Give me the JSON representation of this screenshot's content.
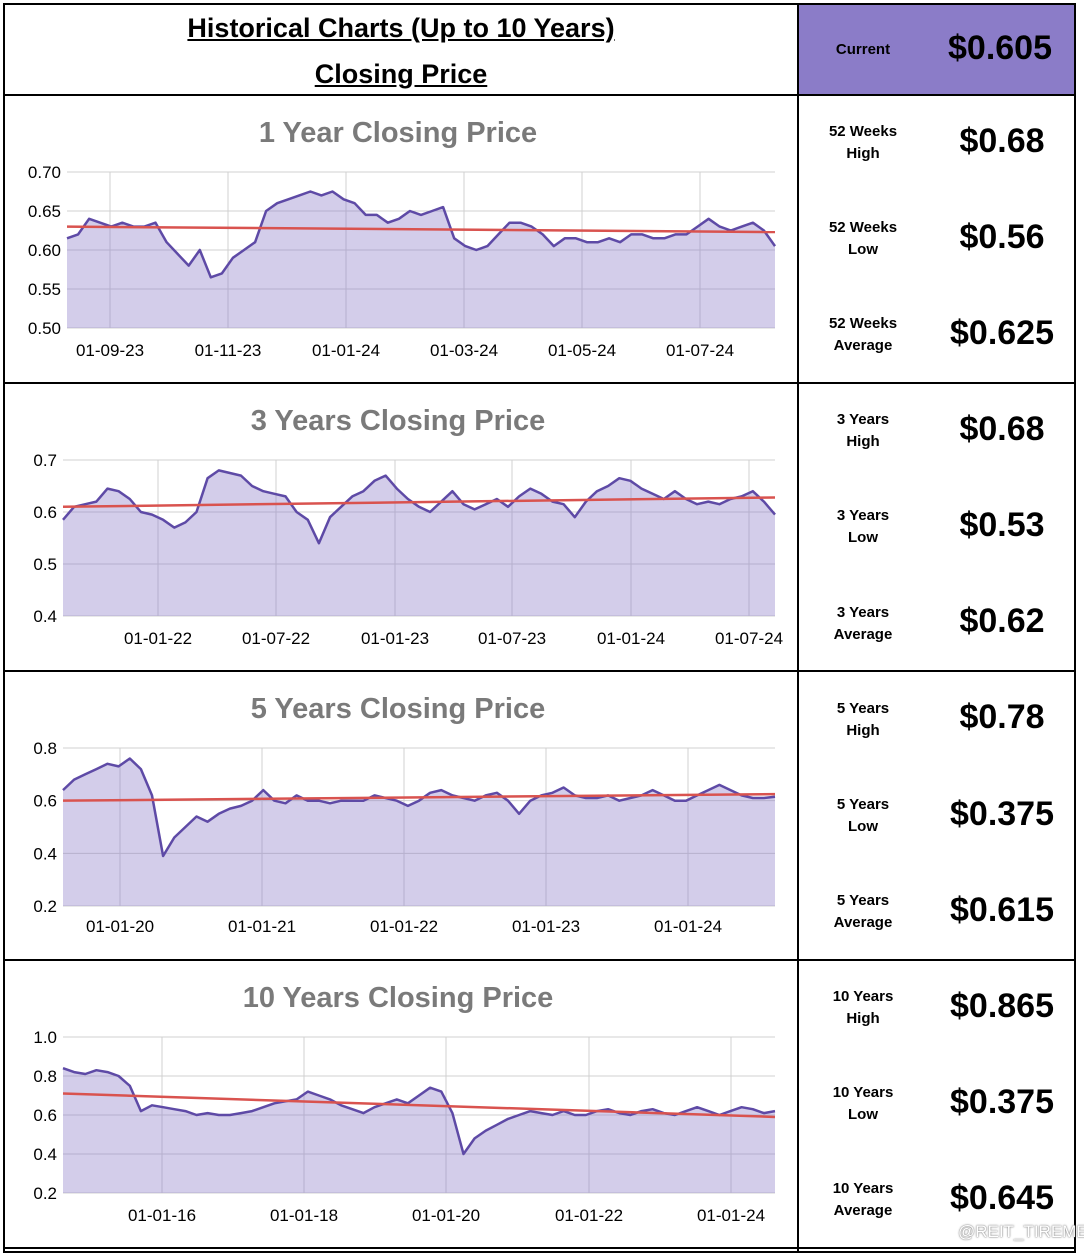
{
  "header": {
    "title_line1": "Historical Charts (Up to 10 Years)",
    "title_line2": "Closing Price",
    "current_label": "Current",
    "current_value": "$0.605",
    "accent_color": "#8b7cc8"
  },
  "sections": [
    {
      "stats": [
        {
          "label1": "52 Weeks",
          "label2": "High",
          "value": "$0.68"
        },
        {
          "label1": "52 Weeks",
          "label2": "Low",
          "value": "$0.56"
        },
        {
          "label1": "52 Weeks",
          "label2": "Average",
          "value": "$0.625"
        }
      ]
    },
    {
      "stats": [
        {
          "label1": "3 Years",
          "label2": "High",
          "value": "$0.68"
        },
        {
          "label1": "3 Years",
          "label2": "Low",
          "value": "$0.53"
        },
        {
          "label1": "3 Years",
          "label2": "Average",
          "value": "$0.62"
        }
      ]
    },
    {
      "stats": [
        {
          "label1": "5 Years",
          "label2": "High",
          "value": "$0.78"
        },
        {
          "label1": "5 Years",
          "label2": "Low",
          "value": "$0.375"
        },
        {
          "label1": "5 Years",
          "label2": "Average",
          "value": "$0.615"
        }
      ]
    },
    {
      "stats": [
        {
          "label1": "10 Years",
          "label2": "High",
          "value": "$0.865"
        },
        {
          "label1": "10 Years",
          "label2": "Low",
          "value": "$0.375"
        },
        {
          "label1": "10 Years",
          "label2": "Average",
          "value": "$0.645"
        }
      ]
    }
  ],
  "watermark": "@REIT_TIREMENT",
  "chart_data": [
    {
      "type": "area",
      "title": "1 Year Closing Price",
      "xlabel": "",
      "ylabel": "",
      "x_tick_labels": [
        "01-09-23",
        "01-11-23",
        "01-01-24",
        "01-03-24",
        "01-05-24",
        "01-07-24"
      ],
      "y_tick_labels": [
        "0.70",
        "0.65",
        "0.60",
        "0.55",
        "0.50"
      ],
      "ylim": [
        0.5,
        0.7
      ],
      "grid": true,
      "series": [
        {
          "values": [
            0.615,
            0.62,
            0.64,
            0.635,
            0.63,
            0.635,
            0.63,
            0.63,
            0.635,
            0.61,
            0.595,
            0.58,
            0.6,
            0.565,
            0.57,
            0.59,
            0.6,
            0.61,
            0.65,
            0.66,
            0.665,
            0.67,
            0.675,
            0.67,
            0.675,
            0.665,
            0.66,
            0.645,
            0.645,
            0.635,
            0.64,
            0.65,
            0.645,
            0.65,
            0.655,
            0.615,
            0.605,
            0.6,
            0.605,
            0.62,
            0.635,
            0.635,
            0.63,
            0.62,
            0.605,
            0.615,
            0.615,
            0.61,
            0.61,
            0.615,
            0.61,
            0.62,
            0.62,
            0.615,
            0.615,
            0.62,
            0.62,
            0.63,
            0.64,
            0.63,
            0.625,
            0.63,
            0.635,
            0.625,
            0.605
          ]
        },
        {
          "values": [
            0.63,
            0.623
          ]
        }
      ]
    },
    {
      "type": "area",
      "title": "3 Years Closing Price",
      "xlabel": "",
      "ylabel": "",
      "x_tick_labels": [
        "01-01-22",
        "01-07-22",
        "01-01-23",
        "01-07-23",
        "01-01-24",
        "01-07-24"
      ],
      "y_tick_labels": [
        "0.7",
        "0.6",
        "0.5",
        "0.4"
      ],
      "ylim": [
        0.4,
        0.7
      ],
      "grid": true,
      "series": [
        {
          "values": [
            0.585,
            0.61,
            0.615,
            0.62,
            0.645,
            0.64,
            0.625,
            0.6,
            0.595,
            0.585,
            0.57,
            0.58,
            0.6,
            0.665,
            0.68,
            0.675,
            0.67,
            0.65,
            0.64,
            0.635,
            0.63,
            0.6,
            0.585,
            0.54,
            0.59,
            0.61,
            0.63,
            0.64,
            0.66,
            0.67,
            0.645,
            0.625,
            0.61,
            0.6,
            0.62,
            0.64,
            0.615,
            0.605,
            0.615,
            0.625,
            0.61,
            0.63,
            0.645,
            0.635,
            0.62,
            0.615,
            0.59,
            0.62,
            0.64,
            0.65,
            0.665,
            0.66,
            0.645,
            0.635,
            0.625,
            0.64,
            0.625,
            0.615,
            0.62,
            0.615,
            0.625,
            0.63,
            0.64,
            0.62,
            0.595
          ]
        },
        {
          "values": [
            0.61,
            0.628
          ]
        }
      ]
    },
    {
      "type": "area",
      "title": "5 Years Closing Price",
      "xlabel": "",
      "ylabel": "",
      "x_tick_labels": [
        "01-01-20",
        "01-01-21",
        "01-01-22",
        "01-01-23",
        "01-01-24"
      ],
      "y_tick_labels": [
        "0.8",
        "0.6",
        "0.4",
        "0.2"
      ],
      "ylim": [
        0.2,
        0.8
      ],
      "grid": true,
      "series": [
        {
          "values": [
            0.64,
            0.68,
            0.7,
            0.72,
            0.74,
            0.73,
            0.76,
            0.72,
            0.62,
            0.39,
            0.46,
            0.5,
            0.54,
            0.52,
            0.55,
            0.57,
            0.58,
            0.6,
            0.64,
            0.6,
            0.59,
            0.62,
            0.6,
            0.6,
            0.59,
            0.6,
            0.6,
            0.6,
            0.62,
            0.61,
            0.6,
            0.58,
            0.6,
            0.63,
            0.64,
            0.62,
            0.61,
            0.6,
            0.62,
            0.63,
            0.6,
            0.55,
            0.6,
            0.62,
            0.63,
            0.65,
            0.62,
            0.61,
            0.61,
            0.62,
            0.6,
            0.61,
            0.62,
            0.64,
            0.62,
            0.6,
            0.6,
            0.62,
            0.64,
            0.66,
            0.64,
            0.62,
            0.61,
            0.61,
            0.615
          ]
        },
        {
          "values": [
            0.6,
            0.625
          ]
        }
      ]
    },
    {
      "type": "area",
      "title": "10 Years Closing Price",
      "xlabel": "",
      "ylabel": "",
      "x_tick_labels": [
        "01-01-16",
        "01-01-18",
        "01-01-20",
        "01-01-22",
        "01-01-24"
      ],
      "y_tick_labels": [
        "1.0",
        "0.8",
        "0.6",
        "0.4",
        "0.2"
      ],
      "ylim": [
        0.2,
        1.0
      ],
      "grid": true,
      "series": [
        {
          "values": [
            0.84,
            0.82,
            0.81,
            0.83,
            0.82,
            0.8,
            0.75,
            0.62,
            0.65,
            0.64,
            0.63,
            0.62,
            0.6,
            0.61,
            0.6,
            0.6,
            0.61,
            0.62,
            0.64,
            0.66,
            0.67,
            0.68,
            0.72,
            0.7,
            0.68,
            0.65,
            0.63,
            0.61,
            0.64,
            0.66,
            0.68,
            0.66,
            0.7,
            0.74,
            0.72,
            0.61,
            0.4,
            0.48,
            0.52,
            0.55,
            0.58,
            0.6,
            0.62,
            0.61,
            0.6,
            0.62,
            0.6,
            0.6,
            0.62,
            0.63,
            0.61,
            0.6,
            0.62,
            0.63,
            0.61,
            0.6,
            0.62,
            0.64,
            0.62,
            0.6,
            0.62,
            0.64,
            0.63,
            0.61,
            0.62
          ]
        },
        {
          "values": [
            0.71,
            0.59
          ]
        }
      ]
    }
  ]
}
